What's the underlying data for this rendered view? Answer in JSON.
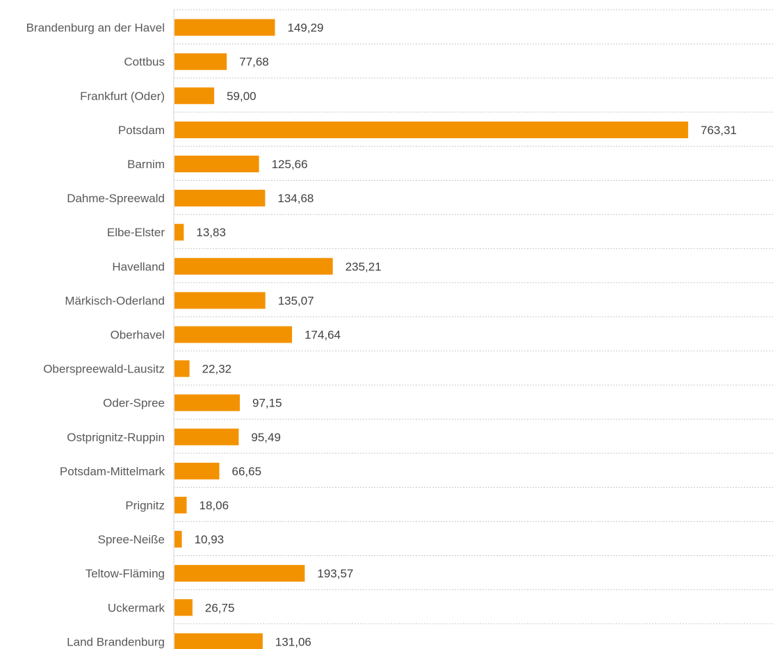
{
  "chart_data": {
    "type": "bar",
    "orientation": "horizontal",
    "title": "",
    "xlabel": "",
    "ylabel": "",
    "categories": [
      "Brandenburg an der Havel",
      "Cottbus",
      "Frankfurt (Oder)",
      "Potsdam",
      "Barnim",
      "Dahme-Spreewald",
      "Elbe-Elster",
      "Havelland",
      "Märkisch-Oderland",
      "Oberhavel",
      "Oberspreewald-Lausitz",
      "Oder-Spree",
      "Ostprignitz-Ruppin",
      "Potsdam-Mittelmark",
      "Prignitz",
      "Spree-Neiße",
      "Teltow-Fläming",
      "Uckermark",
      "Land Brandenburg"
    ],
    "values": [
      149.29,
      77.68,
      59.0,
      763.31,
      125.66,
      134.68,
      13.83,
      235.21,
      135.07,
      174.64,
      22.32,
      97.15,
      95.49,
      66.65,
      18.06,
      10.93,
      193.57,
      26.75,
      131.06
    ],
    "value_labels": [
      "149,29",
      "77,68",
      "59,00",
      "763,31",
      "125,66",
      "134,68",
      "13,83",
      "235,21",
      "135,07",
      "174,64",
      "22,32",
      "97,15",
      "95,49",
      "66,65",
      "18,06",
      "10,93",
      "193,57",
      "26,75",
      "131,06"
    ],
    "xlim": [
      0,
      790
    ],
    "grid": "horizontal dotted separators",
    "legend": "none",
    "bar_color": "#f39200"
  }
}
